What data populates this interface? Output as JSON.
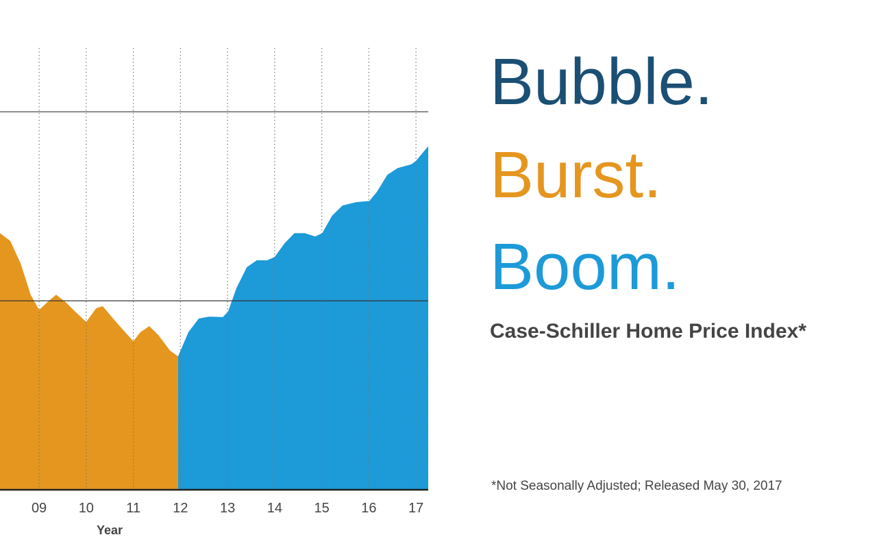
{
  "chart_data": {
    "type": "area",
    "title": [
      "Bubble.",
      "Burst.",
      "Boom."
    ],
    "title_colors": [
      "#1b4f74",
      "#e5961f",
      "#1d9ad8"
    ],
    "subtitle": "Case-Schiller Home Price Index*",
    "note": "*Not Seasonally Adjusted; Released May 30, 2017",
    "xlabel": "Year",
    "xlim": [
      2008.17,
      2017.26
    ],
    "xticks": [
      {
        "value": 2009,
        "label": "09"
      },
      {
        "value": 2010,
        "label": "10"
      },
      {
        "value": 2011,
        "label": "11"
      },
      {
        "value": 2012,
        "label": "12"
      },
      {
        "value": 2013,
        "label": "13"
      },
      {
        "value": 2014,
        "label": "14"
      },
      {
        "value": 2015,
        "label": "15"
      },
      {
        "value": 2016,
        "label": "16"
      },
      {
        "value": 2017,
        "label": "17"
      }
    ],
    "ylim": [
      100,
      210
    ],
    "yticks": [
      150,
      200
    ],
    "show_ytick_labels": false,
    "grid": true,
    "series": [
      {
        "color": "#e5961f",
        "x": [
          2008.17,
          2008.39,
          2008.61,
          2008.82,
          2009.0,
          2009.19,
          2009.36,
          2009.55,
          2009.77,
          2010.0,
          2010.21,
          2010.35,
          2010.57,
          2010.79,
          2011.0,
          2011.15,
          2011.34,
          2011.54,
          2011.78,
          2011.95
        ],
        "values": [
          167.9,
          165.8,
          159.8,
          151.6,
          147.6,
          149.8,
          151.6,
          149.8,
          147.1,
          144.4,
          148.0,
          148.6,
          145.3,
          142.2,
          139.3,
          141.7,
          143.3,
          140.8,
          136.8,
          135.3
        ]
      },
      {
        "color": "#1d9ad8",
        "x": [
          2011.95,
          2012.17,
          2012.39,
          2012.61,
          2012.9,
          2013.01,
          2013.19,
          2013.41,
          2013.62,
          2013.84,
          2014.0,
          2014.21,
          2014.42,
          2014.64,
          2014.86,
          2015.01,
          2015.22,
          2015.44,
          2015.73,
          2016.01,
          2016.17,
          2016.39,
          2016.61,
          2016.9,
          2017.0,
          2017.26
        ],
        "values": [
          135.3,
          141.7,
          145.3,
          145.8,
          145.7,
          147.1,
          153.4,
          158.9,
          160.7,
          160.7,
          161.6,
          165.2,
          167.9,
          167.9,
          167.0,
          167.9,
          172.5,
          175.2,
          176.1,
          176.4,
          178.8,
          183.3,
          185.1,
          186.1,
          187.0,
          190.9
        ]
      }
    ]
  }
}
